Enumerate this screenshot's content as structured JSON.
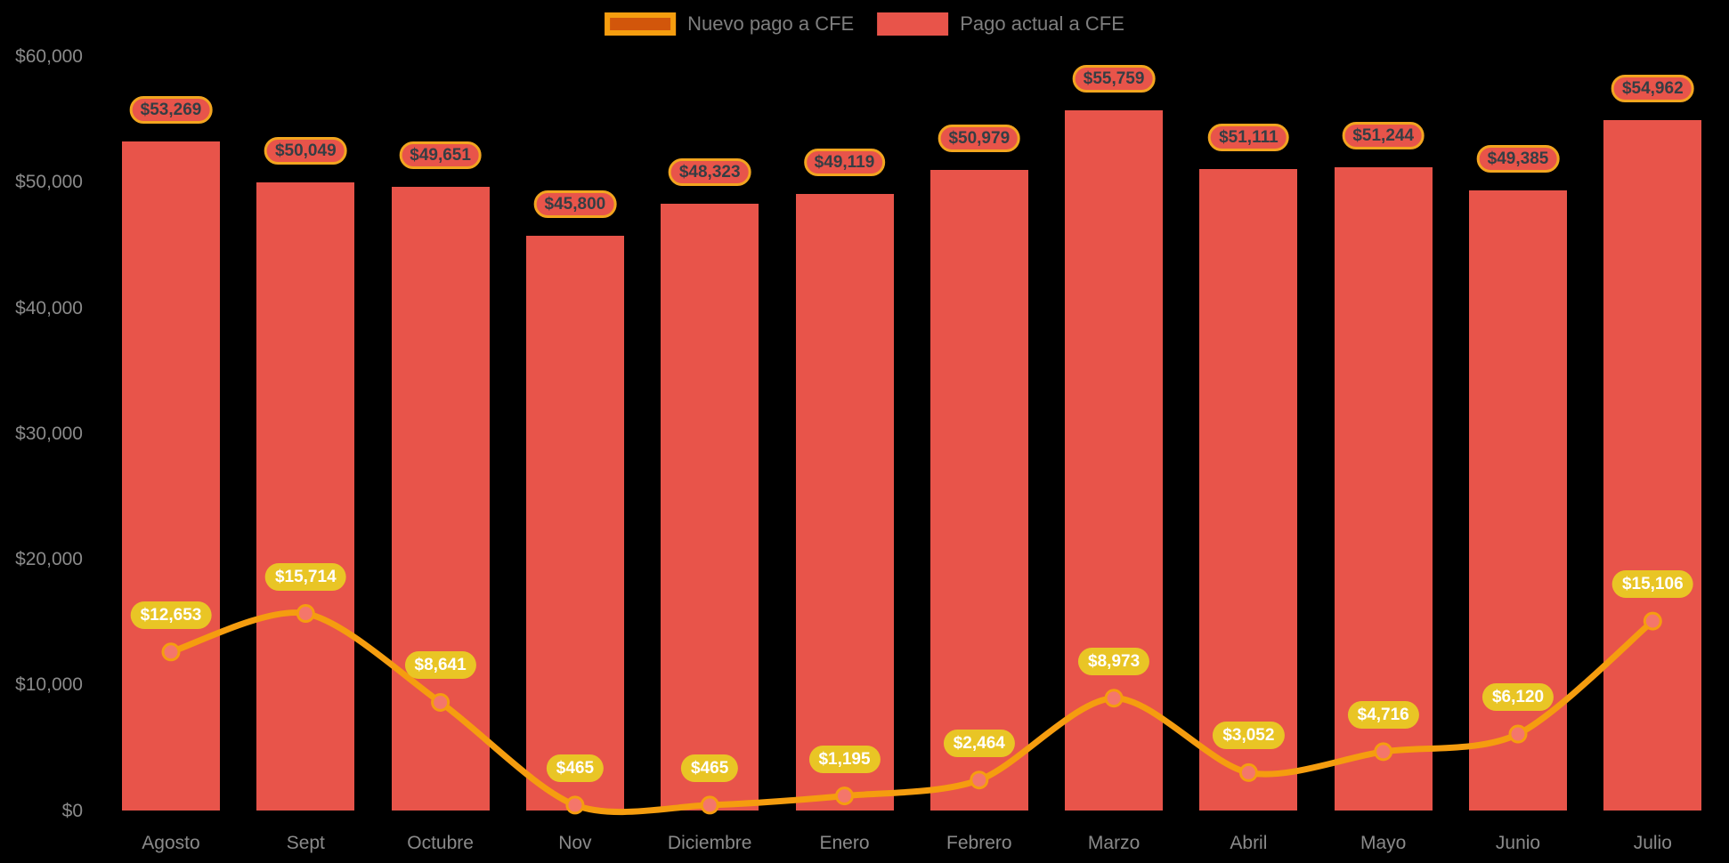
{
  "legend": {
    "items": [
      {
        "label": "Nuevo pago a CFE",
        "series": "line",
        "swatch_fill": "#d2560b",
        "swatch_border": "#f59d0f"
      },
      {
        "label": "Pago actual a CFE",
        "series": "bar",
        "swatch_fill": "#e8544a",
        "swatch_border": ""
      }
    ]
  },
  "chart_data": {
    "type": "combo-bar-line",
    "categories": [
      "Agosto",
      "Sept",
      "Octubre",
      "Nov",
      "Diciembre",
      "Enero",
      "Febrero",
      "Marzo",
      "Abril",
      "Mayo",
      "Junio",
      "Julio"
    ],
    "series": [
      {
        "name": "Pago actual a CFE",
        "type": "bar",
        "color": "#e8544a",
        "values": [
          53269,
          50049,
          49651,
          45800,
          48323,
          49119,
          50979,
          55759,
          51111,
          51244,
          49385,
          54962
        ],
        "value_labels": [
          "$53,269",
          "$50,049",
          "$49,651",
          "$45,800",
          "$48,323",
          "$49,119",
          "$50,979",
          "$55,759",
          "$51,111",
          "$51,244",
          "$49,385",
          "$54,962"
        ],
        "label_style": {
          "bg": "#e8544a",
          "border": "#f2a51f",
          "text": "#353e44"
        }
      },
      {
        "name": "Nuevo pago a CFE",
        "type": "line",
        "color": "#f59d0f",
        "marker_fill": "#f4766b",
        "values": [
          12653,
          15714,
          8641,
          465,
          465,
          1195,
          2464,
          8973,
          3052,
          4716,
          6120,
          15106
        ],
        "value_labels": [
          "$12,653",
          "$15,714",
          "$8,641",
          "$465",
          "$465",
          "$1,195",
          "$2,464",
          "$8,973",
          "$3,052",
          "$4,716",
          "$6,120",
          "$15,106"
        ],
        "label_style": {
          "bg": "#e9c525",
          "text": "#ffffff"
        }
      }
    ],
    "y_axis": {
      "ticks": [
        {
          "label": "$0",
          "value": 0
        },
        {
          "label": "$10,000",
          "value": 10000
        },
        {
          "label": "$20,000",
          "value": 20000
        },
        {
          "label": "$30,000",
          "value": 30000
        },
        {
          "label": "$40,000",
          "value": 40000
        },
        {
          "label": "$50,000",
          "value": 50000
        },
        {
          "label": "$60,000",
          "value": 60000
        }
      ],
      "range": [
        0,
        60000
      ],
      "color": "#8a8a8a"
    },
    "x_axis": {
      "color": "#8a8a8a"
    },
    "grid": false,
    "legend_position": "top-center",
    "background": "#000000"
  }
}
